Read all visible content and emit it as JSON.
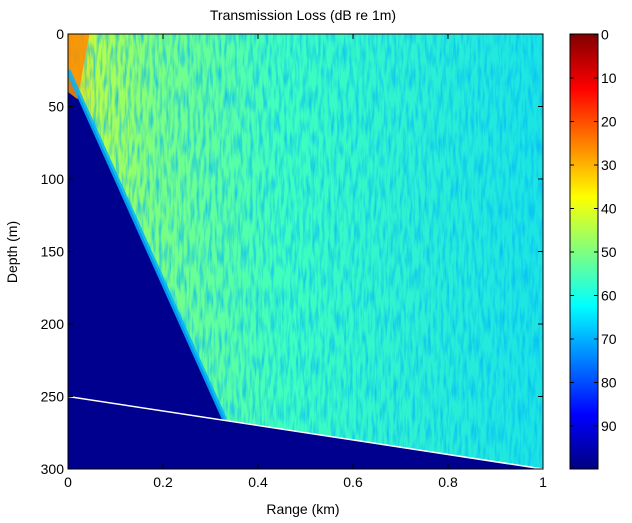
{
  "chart_data": {
    "type": "heatmap",
    "title": "Transmission Loss (dB re 1m)",
    "xlabel": "Range (km)",
    "ylabel": "Depth (m)",
    "xlim": [
      0,
      1
    ],
    "ylim": [
      0,
      300
    ],
    "y_reversed": true,
    "x_ticks": [
      0,
      0.2,
      0.4,
      0.6,
      0.8,
      1
    ],
    "x_tick_labels": [
      "0",
      "0.2",
      "0.4",
      "0.6",
      "0.8",
      "1"
    ],
    "y_ticks": [
      0,
      50,
      100,
      150,
      200,
      250,
      300
    ],
    "y_tick_labels": [
      "0",
      "50",
      "100",
      "150",
      "200",
      "250",
      "300"
    ],
    "colorbar": {
      "colormap": "jet",
      "reversed": true,
      "clim": [
        0,
        100
      ],
      "ticks": [
        0,
        10,
        20,
        30,
        40,
        50,
        60,
        70,
        80,
        90
      ],
      "tick_labels": [
        "0",
        "10",
        "20",
        "30",
        "40",
        "50",
        "60",
        "70",
        "80",
        "90"
      ]
    },
    "source": {
      "range_km": 0,
      "depth_m": 25
    },
    "bottom_line": [
      {
        "range_km": 0,
        "depth_m": 250
      },
      {
        "range_km": 1,
        "depth_m": 300
      }
    ],
    "shadow_zone_edge": [
      {
        "range_km": 0,
        "depth_m": 25
      },
      {
        "range_km": 0.33,
        "depth_m": 266
      }
    ],
    "typical_tl_db": 60,
    "grid": false
  }
}
